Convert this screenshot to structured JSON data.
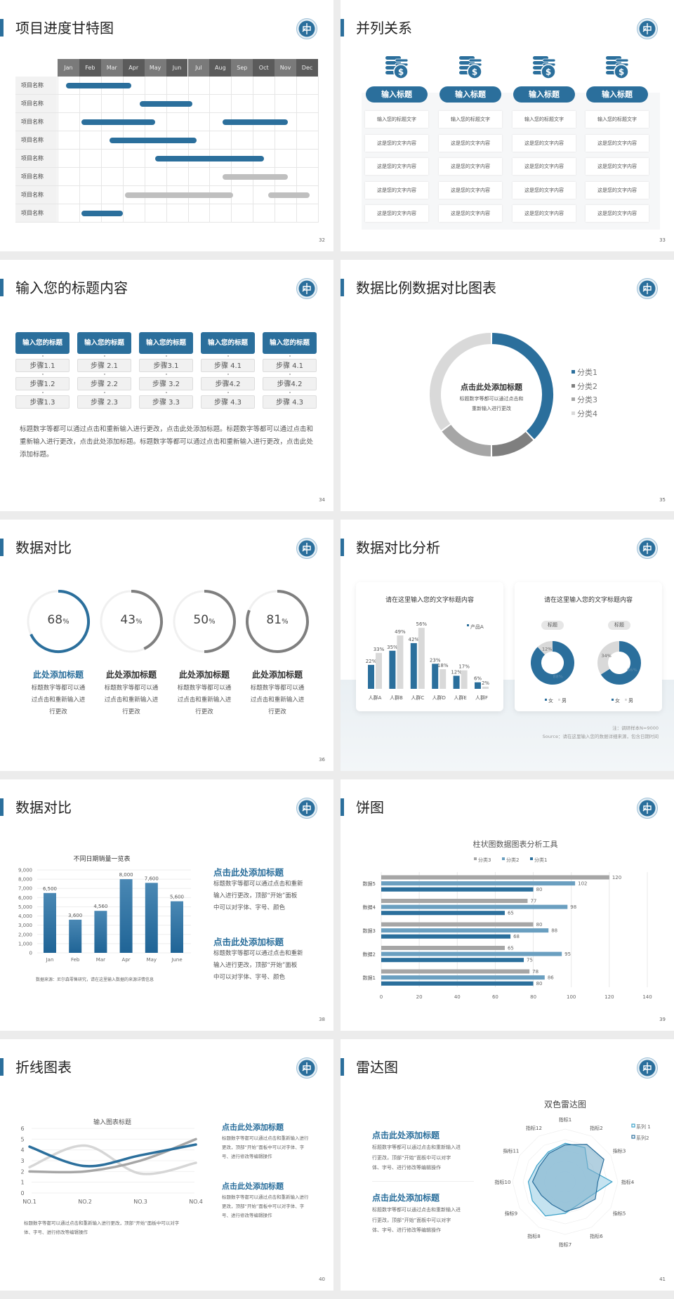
{
  "colors": {
    "blue": "#2b6f9c",
    "gray": "#bfbfbf",
    "dark_gray": "#7f7f7f",
    "light_gray": "#d9d9d9",
    "cyan": "#3aa0c8"
  },
  "logo_icon": "university-seal-icon",
  "slides": [
    {
      "title": "项目进度甘特图",
      "page": "32",
      "gantt": {
        "months": [
          "Jan",
          "Feb",
          "Mar",
          "Apr",
          "May",
          "Jun",
          "Jul",
          "Aug",
          "Sep",
          "Oct",
          "Nov",
          "Dec"
        ],
        "rows": [
          {
            "label": "项目名称",
            "bars": [
              {
                "start": 0.4,
                "end": 3.4,
                "color": "#2b6f9c"
              }
            ]
          },
          {
            "label": "项目名称",
            "bars": [
              {
                "start": 3.8,
                "end": 6.2,
                "color": "#2b6f9c"
              }
            ]
          },
          {
            "label": "项目名称",
            "bars": [
              {
                "start": 1.1,
                "end": 4.5,
                "color": "#2b6f9c"
              },
              {
                "start": 7.6,
                "end": 10.6,
                "color": "#2b6f9c"
              }
            ]
          },
          {
            "label": "项目名称",
            "bars": [
              {
                "start": 2.4,
                "end": 6.4,
                "color": "#2b6f9c"
              }
            ]
          },
          {
            "label": "项目名称",
            "bars": [
              {
                "start": 4.5,
                "end": 9.5,
                "color": "#2b6f9c"
              }
            ]
          },
          {
            "label": "项目名称",
            "bars": [
              {
                "start": 7.6,
                "end": 10.6,
                "color": "#bfbfbf"
              }
            ]
          },
          {
            "label": "项目名称",
            "bars": [
              {
                "start": 3.1,
                "end": 8.1,
                "color": "#bfbfbf"
              },
              {
                "start": 9.7,
                "end": 11.6,
                "color": "#bfbfbf"
              }
            ]
          },
          {
            "label": "项目名称",
            "bars": [
              {
                "start": 1.1,
                "end": 3.0,
                "color": "#2b6f9c"
              }
            ]
          }
        ]
      }
    },
    {
      "title": "并列关系",
      "page": "33",
      "icon": "coins-dollar-icon",
      "columns": [
        {
          "header": "输入标题",
          "items": [
            "输入您的标题文字",
            "这是您的文字内容",
            "这是您的文字内容",
            "这是您的文字内容",
            "这是您的文字内容"
          ]
        },
        {
          "header": "输入标题",
          "items": [
            "输入您的标题文字",
            "这是您的文字内容",
            "这是您的文字内容",
            "这是您的文字内容",
            "这是您的文字内容"
          ]
        },
        {
          "header": "输入标题",
          "items": [
            "输入您的标题文字",
            "这是您的文字内容",
            "这是您的文字内容",
            "这是您的文字内容",
            "这是您的文字内容"
          ]
        },
        {
          "header": "输入标题",
          "items": [
            "输入您的标题文字",
            "这是您的文字内容",
            "这是您的文字内容",
            "这是您的文字内容",
            "这是您的文字内容"
          ]
        }
      ]
    },
    {
      "title": "输入您的标题内容",
      "page": "34",
      "columns": [
        {
          "header": "输入您的标题",
          "steps": [
            "步骤1.1",
            "步骤1.2",
            "步骤1.3"
          ]
        },
        {
          "header": "输入您的标题",
          "steps": [
            "步骤 2.1",
            "步骤 2.2",
            "步骤 2.3"
          ]
        },
        {
          "header": "输入您的标题",
          "steps": [
            "步骤3.1",
            "步骤 3.2",
            "步骤 3.3"
          ]
        },
        {
          "header": "输入您的标题",
          "steps": [
            "步骤 4.1",
            "步骤4.2",
            "步骤 4.3"
          ]
        },
        {
          "header": "输入您的标题",
          "steps": [
            "步骤 4.1",
            "步骤4.2",
            "步骤 4.3"
          ]
        }
      ],
      "paragraph": "标题数字等都可以通过点击和重新输入进行更改，点击此处添加标题。标题数字等都可以通过点击和重新输入进行更改，点击此处添加标题。标题数字等都可以通过点击和重新输入进行更改，点击此处添加标题。"
    },
    {
      "title": "数据比例数据对比图表",
      "page": "35",
      "center_title": "点击此处添加标题",
      "center_text_1": "标题数字等都可以通过点击和",
      "center_text_2": "重新输入进行更改"
    },
    {
      "title": "数据对比",
      "page": "36",
      "items": [
        {
          "value": 68,
          "number": "68",
          "unit": "%",
          "heading": "此处添加标题",
          "lines": [
            "标题数字等都可以通",
            "过点击和重新输入进",
            "行更改"
          ],
          "color": "#2b6f9c",
          "highlight": true
        },
        {
          "value": 43,
          "number": "43",
          "unit": "%",
          "heading": "此处添加标题",
          "lines": [
            "标题数字等都可以通",
            "过点击和重新输入进",
            "行更改"
          ],
          "color": "#7f7f7f",
          "highlight": false
        },
        {
          "value": 50,
          "number": "50",
          "unit": "%",
          "heading": "此处添加标题",
          "lines": [
            "标题数字等都可以通",
            "过点击和重新输入进",
            "行更改"
          ],
          "color": "#7f7f7f",
          "highlight": false
        },
        {
          "value": 81,
          "number": "81",
          "unit": "%",
          "heading": "此处添加标题",
          "lines": [
            "标题数字等都可以通",
            "过点击和重新输入进",
            "行更改"
          ],
          "color": "#7f7f7f",
          "highlight": false
        }
      ]
    },
    {
      "title": "数据对比分析",
      "page": "37",
      "left_card_title": "请在这里输入您的文字标题内容",
      "right_card_title": "请在这里输入您的文字标题内容",
      "note": "注：调研样本N=9000",
      "source": "Source：请在这里输入您的数据详细来源，包含日期时间"
    },
    {
      "title": "数据对比",
      "page": "38",
      "source": "数据来源：尼尔森零售研究，请在这里输入数据的来源详情信息",
      "blocks": [
        {
          "heading": "点击此处添加标题",
          "lines": [
            "标题数字等都可以通过点击和重新",
            "输入进行更改，顶部“开始”面板",
            "中可以对字体、字号、颜色"
          ]
        },
        {
          "heading": "点击此处添加标题",
          "lines": [
            "标题数字等都可以通过点击和重新",
            "输入进行更改，顶部“开始”面板",
            "中可以对字体、字号、颜色"
          ]
        }
      ]
    },
    {
      "title": "饼图",
      "page": "39"
    },
    {
      "title": "折线图表",
      "page": "40",
      "bottom_text": [
        "标题数字等都可以通过点击和重新输入进行更改，顶部“开始”面板中可以对字",
        "体、字号、进行修改等编辑操作"
      ],
      "blocks": [
        {
          "heading": "点击此处添加标题",
          "lines": [
            "标题数字等都可以通过点击和重新输入进行",
            "更改，顶部“开始”面板中可以对字体、字",
            "号、进行修改等编辑操作"
          ]
        },
        {
          "heading": "点击此处添加标题",
          "lines": [
            "标题数字等都可以通过点击和重新输入进行",
            "更改，顶部“开始”面板中可以对字体、字",
            "号、进行修改等编辑操作"
          ]
        }
      ]
    },
    {
      "title": "雷达图",
      "page": "41",
      "blocks": [
        {
          "heading": "点击此处添加标题",
          "lines": [
            "标题数字等都可以通过点击和重新输入进",
            "行更改，顶部“开始”面板中可以对字",
            "体、字号、进行修改等编辑操作"
          ]
        },
        {
          "heading": "点击此处添加标题",
          "lines": [
            "标题数字等都可以通过点击和重新输入进",
            "行更改，顶部“开始”面板中可以对字",
            "体、字号、进行修改等编辑操作"
          ]
        }
      ]
    }
  ],
  "chart_data": [
    {
      "type": "pie",
      "variant": "donut",
      "categories": [
        "分类1",
        "分类2",
        "分类3",
        "分类4"
      ],
      "values": [
        38,
        12,
        15,
        35
      ],
      "colors": [
        "#2b6f9c",
        "#7f7f7f",
        "#a6a6a6",
        "#d9d9d9"
      ],
      "legend": "right"
    },
    {
      "type": "bar",
      "categories": [
        "人群A",
        "人群B",
        "人群C",
        "人群D",
        "人群E",
        "人群F"
      ],
      "series": [
        {
          "name": "产品A",
          "values": [
            22,
            35,
            42,
            23,
            12,
            6
          ],
          "color": "#2b6f9c"
        },
        {
          "values": [
            33,
            49,
            56,
            18,
            17,
            2
          ],
          "color": "#d9d9d9"
        }
      ],
      "unit": "%",
      "legend": "top-right",
      "grid": false
    },
    {
      "type": "pie",
      "variant": "donut",
      "title": "标题",
      "categories": [
        "女",
        "男"
      ],
      "values": [
        88,
        12
      ],
      "colors": [
        "#2b6f9c",
        "#d9d9d9"
      ],
      "legend": "bottom"
    },
    {
      "type": "pie",
      "variant": "donut",
      "title": "标题",
      "categories": [
        "女",
        "男"
      ],
      "values": [
        66,
        34
      ],
      "colors": [
        "#2b6f9c",
        "#d9d9d9"
      ],
      "legend": "bottom"
    },
    {
      "type": "bar",
      "title": "不同日期销量一览表",
      "categories": [
        "Jan",
        "Feb",
        "Mar",
        "Apr",
        "May",
        "June"
      ],
      "values": [
        6500,
        3600,
        4560,
        8000,
        7600,
        5600
      ],
      "data_labels": [
        "6,500",
        "3,600",
        "4,560",
        "8,000",
        "7,600",
        "5,600"
      ],
      "ylim": [
        0,
        9000
      ],
      "y_ticks": [
        "0",
        "1,000",
        "2,000",
        "3,000",
        "4,000",
        "5,000",
        "6,000",
        "7,000",
        "8,000",
        "9,000"
      ],
      "grid": true
    },
    {
      "type": "bar",
      "orientation": "horizontal",
      "title": "柱状图数据图表分析工具",
      "categories": [
        "数据1",
        "数据2",
        "数据3",
        "数据4",
        "数据5"
      ],
      "series": [
        {
          "name": "分类3",
          "values": [
            78,
            65,
            80,
            77,
            120
          ],
          "color": "#a6a6a6"
        },
        {
          "name": "分类2",
          "values": [
            86,
            95,
            88,
            98,
            102
          ],
          "color": "#6a9fc0"
        },
        {
          "name": "分类1",
          "values": [
            80,
            75,
            68,
            65,
            80
          ],
          "color": "#2b6f9c"
        }
      ],
      "xlim": [
        0,
        140
      ],
      "x_ticks": [
        "0",
        "20",
        "40",
        "60",
        "80",
        "100",
        "120",
        "140"
      ],
      "legend": "top",
      "grid": true
    },
    {
      "type": "line",
      "title": "输入图表标题",
      "categories": [
        "NO.1",
        "NO.2",
        "NO.3",
        "NO.4"
      ],
      "series": [
        {
          "values": [
            2.4,
            4.4,
            1.8,
            2.8
          ],
          "color": "#d6d6d6"
        },
        {
          "values": [
            2.0,
            2.0,
            3.0,
            5.0
          ],
          "color": "#a6a6a6"
        },
        {
          "values": [
            4.3,
            2.5,
            3.5,
            4.5
          ],
          "color": "#2b6f9c"
        }
      ],
      "ylim": [
        0,
        6
      ],
      "y_ticks": [
        "0",
        "1",
        "2",
        "3",
        "4",
        "5",
        "6"
      ],
      "smooth": true,
      "grid": true
    },
    {
      "type": "radar",
      "title": "双色雷达图",
      "categories": [
        "指标1",
        "指标2",
        "指标3",
        "指标4",
        "指标5",
        "指标6",
        "指标7",
        "指标8",
        "指标9",
        "指标10",
        "指标11",
        "指标12"
      ],
      "series": [
        {
          "name": "系列 1",
          "values": [
            73,
            75,
            50,
            89,
            55,
            50,
            60,
            75,
            72,
            70,
            62,
            65
          ],
          "color": "#3aa0c8",
          "fill": "#bfe0ee"
        },
        {
          "name": "系列2",
          "values": [
            70,
            82,
            85,
            62,
            66,
            56,
            57,
            50,
            52,
            62,
            57,
            62
          ],
          "color": "#2b6f9c",
          "fill": "#7fb0cc"
        }
      ],
      "rlim": [
        0,
        100
      ],
      "legend": "top-right"
    }
  ]
}
